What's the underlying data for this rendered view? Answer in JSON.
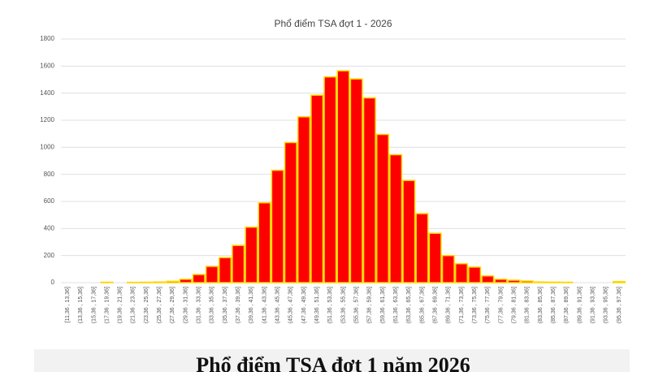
{
  "chart_data": {
    "type": "bar",
    "title": "Phổ điểm TSA đợt 1 - 2026",
    "caption": "Phổ điểm TSA đợt 1 năm 2026",
    "categories": [
      "[11,36 , 13,36]",
      "(13,36 , 15,36]",
      "(15,36 , 17,36]",
      "(17,36 , 19,36]",
      "(19,36 , 21,36]",
      "(21,36 , 23,36]",
      "(23,36 , 25,36]",
      "(25,36 , 27,36]",
      "(27,36 , 29,36]",
      "(29,36 , 31,36]",
      "(31,36 , 33,36]",
      "(33,36 , 35,36]",
      "(35,36 , 37,36]",
      "(37,36 , 39,36]",
      "(39,36 , 41,36]",
      "(41,36 , 43,36]",
      "(43,36 , 45,36]",
      "(45,36 , 47,36]",
      "(47,36 , 49,36]",
      "(49,36 , 51,36]",
      "(51,36 , 53,36]",
      "(53,36 , 55,36]",
      "(55,36 , 57,36]",
      "(57,36 , 59,36]",
      "(59,36 , 61,36]",
      "(61,36 , 63,36]",
      "(63,36 , 65,36]",
      "(65,36 , 67,36]",
      "(67,36 , 69,36]",
      "(69,36 , 71,36]",
      "(71,36 , 73,36]",
      "(73,36 , 75,36]",
      "(75,36 , 77,36]",
      "(77,36 , 79,36]",
      "(79,36 , 81,36]",
      "(81,36 , 83,36]",
      "(83,36 , 85,36]",
      "(85,36 , 87,36]",
      "(87,36 , 89,36]",
      "(89,36 , 91,36]",
      "(91,36 , 93,36]",
      "(93,36 , 95,36]",
      "(95,36 , 97,36]"
    ],
    "values": [
      0,
      0,
      0,
      3,
      0,
      2,
      3,
      5,
      10,
      25,
      60,
      120,
      185,
      275,
      410,
      590,
      830,
      1035,
      1225,
      1385,
      1520,
      1565,
      1505,
      1365,
      1095,
      945,
      755,
      510,
      365,
      200,
      140,
      115,
      50,
      25,
      18,
      12,
      5,
      4,
      3,
      0,
      0,
      0,
      8
    ],
    "color": "#ff0000",
    "edge_color": "#ffd700",
    "ylim": [
      0,
      1800
    ],
    "yticks": [
      0,
      200,
      400,
      600,
      800,
      1000,
      1200,
      1400,
      1600,
      1800
    ],
    "grid": true
  }
}
